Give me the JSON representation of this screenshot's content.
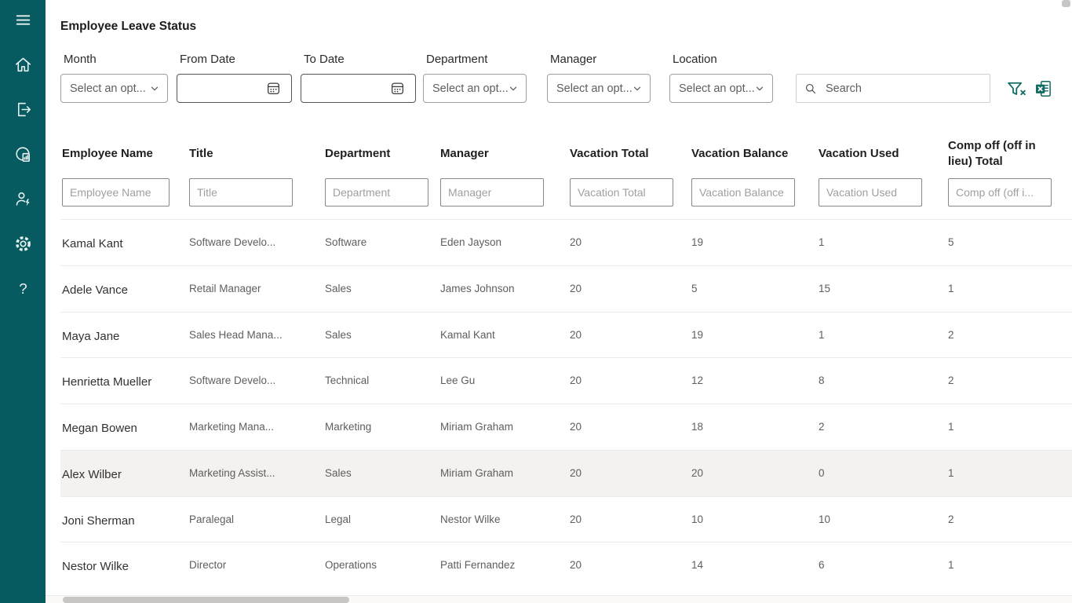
{
  "app": {
    "title": "Employee Leave Status"
  },
  "colors": {
    "sidebar_bg": "#075b60",
    "sidebar_icon": "#e8f1f1",
    "accent_teal": "#0f6a62",
    "row_highlight": "#f3f2f1",
    "row_divider": "#edebe9"
  },
  "sidebar": {
    "items": [
      {
        "name": "menu-icon"
      },
      {
        "name": "home-icon"
      },
      {
        "name": "sign-out-icon"
      },
      {
        "name": "reports-icon"
      },
      {
        "name": "power-user-icon"
      },
      {
        "name": "settings-icon"
      },
      {
        "name": "help-icon"
      }
    ]
  },
  "filters": {
    "month": {
      "label": "Month",
      "value": "Select an opt..."
    },
    "from_date": {
      "label": "From Date",
      "value": ""
    },
    "to_date": {
      "label": "To Date",
      "value": ""
    },
    "department": {
      "label": "Department",
      "value": "Select an opt..."
    },
    "manager": {
      "label": "Manager",
      "value": "Select an opt..."
    },
    "location": {
      "label": "Location",
      "value": "Select an opt..."
    }
  },
  "search": {
    "placeholder": "Search"
  },
  "toolbar": {
    "icons": [
      "filter-clear-icon",
      "excel-export-icon"
    ]
  },
  "table": {
    "columns": [
      {
        "label": "Employee Name",
        "filter_placeholder": "Employee Name"
      },
      {
        "label": "Title",
        "filter_placeholder": "Title"
      },
      {
        "label": "Department",
        "filter_placeholder": "Department"
      },
      {
        "label": "Manager",
        "filter_placeholder": "Manager"
      },
      {
        "label": "Vacation Total",
        "filter_placeholder": "Vacation Total"
      },
      {
        "label": "Vacation Balance",
        "filter_placeholder": "Vacation Balance"
      },
      {
        "label": "Vacation Used",
        "filter_placeholder": "Vacation Used"
      },
      {
        "label": "Comp off (off in lieu) Total",
        "filter_placeholder": "Comp off (off i..."
      }
    ],
    "rows": [
      {
        "employee_name": "Kamal Kant",
        "title": "Software Develo...",
        "department": "Software",
        "manager": "Eden Jayson",
        "vacation_total": "20",
        "vacation_balance": "19",
        "vacation_used": "1",
        "comp_off_total": "5",
        "highlighted": false
      },
      {
        "employee_name": "Adele Vance",
        "title": "Retail Manager",
        "department": "Sales",
        "manager": "James Johnson",
        "vacation_total": "20",
        "vacation_balance": "5",
        "vacation_used": "15",
        "comp_off_total": "1",
        "highlighted": false
      },
      {
        "employee_name": "Maya Jane",
        "title": "Sales Head Mana...",
        "department": "Sales",
        "manager": "Kamal Kant",
        "vacation_total": "20",
        "vacation_balance": "19",
        "vacation_used": "1",
        "comp_off_total": "2",
        "highlighted": false
      },
      {
        "employee_name": "Henrietta Mueller",
        "title": "Software Develo...",
        "department": "Technical",
        "manager": "Lee Gu",
        "vacation_total": "20",
        "vacation_balance": "12",
        "vacation_used": "8",
        "comp_off_total": "2",
        "highlighted": false
      },
      {
        "employee_name": "Megan Bowen",
        "title": "Marketing Mana...",
        "department": "Marketing",
        "manager": "Miriam Graham",
        "vacation_total": "20",
        "vacation_balance": "18",
        "vacation_used": "2",
        "comp_off_total": "1",
        "highlighted": false
      },
      {
        "employee_name": "Alex Wilber",
        "title": "Marketing Assist...",
        "department": "Sales",
        "manager": "Miriam Graham",
        "vacation_total": "20",
        "vacation_balance": "20",
        "vacation_used": "0",
        "comp_off_total": "1",
        "highlighted": true
      },
      {
        "employee_name": "Joni Sherman",
        "title": "Paralegal",
        "department": "Legal",
        "manager": "Nestor Wilke",
        "vacation_total": "20",
        "vacation_balance": "10",
        "vacation_used": "10",
        "comp_off_total": "2",
        "highlighted": false
      },
      {
        "employee_name": "Nestor Wilke",
        "title": "Director",
        "department": "Operations",
        "manager": "Patti Fernandez",
        "vacation_total": "20",
        "vacation_balance": "14",
        "vacation_used": "6",
        "comp_off_total": "1",
        "highlighted": false
      }
    ]
  }
}
